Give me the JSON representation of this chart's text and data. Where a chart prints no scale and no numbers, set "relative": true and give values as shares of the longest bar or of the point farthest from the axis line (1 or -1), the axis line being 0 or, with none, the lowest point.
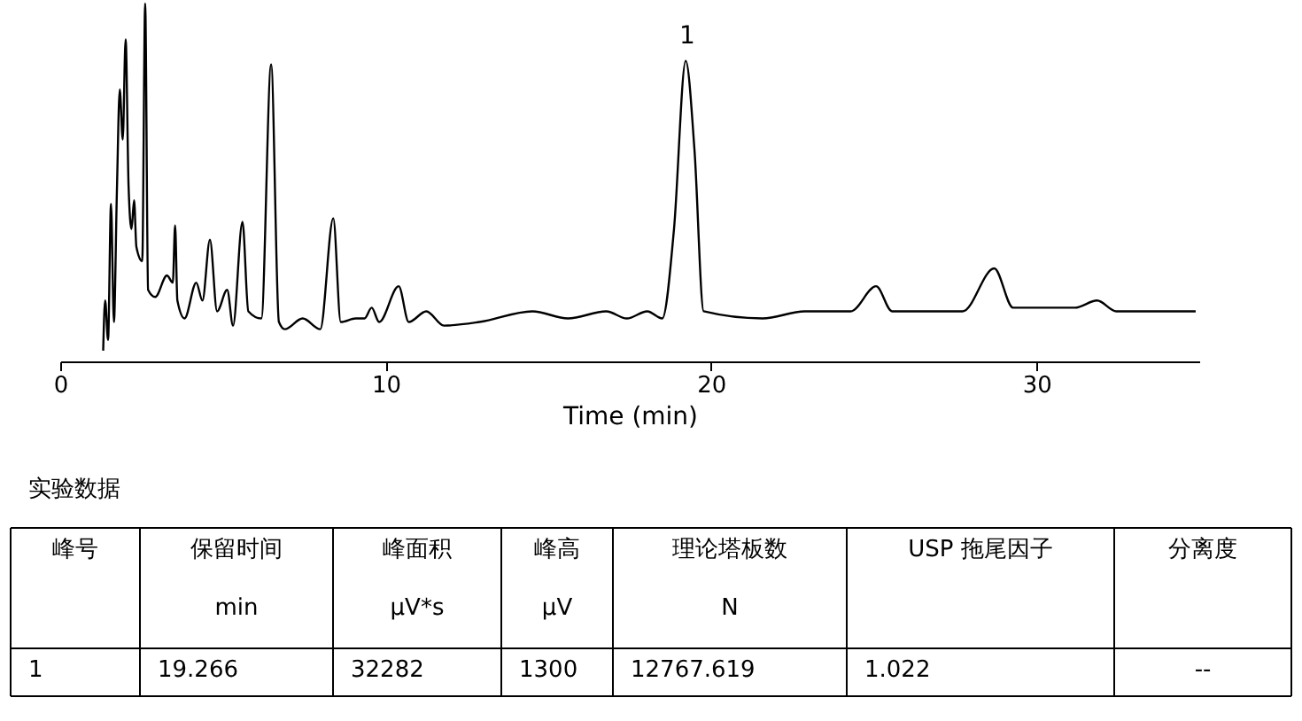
{
  "chart_data": {
    "type": "line",
    "xlabel": "Time (min)",
    "relative": true,
    "xlim": [
      0,
      35
    ],
    "xticks": [
      0,
      10,
      20,
      30
    ],
    "grid": false,
    "marker": "none",
    "line_style": "solid",
    "series": [
      {
        "color": "#000000",
        "x": [
          1.32,
          1.38,
          1.47,
          1.56,
          1.65,
          1.74,
          1.83,
          1.92,
          2.01,
          2.1,
          2.19,
          2.27,
          2.34,
          2.52,
          2.61,
          2.7,
          2.92,
          3.28,
          3.46,
          3.53,
          3.6,
          3.82,
          4.18,
          4.37,
          4.6,
          4.82,
          5.13,
          5.31,
          5.6,
          5.78,
          6.18,
          6.48,
          6.72,
          6.9,
          7.45,
          7.99,
          8.39,
          8.62,
          9.08,
          9.35,
          9.57,
          9.8,
          10.4,
          10.71,
          11.25,
          11.79,
          12.88,
          14.51,
          15.6,
          16.78,
          17.41,
          18.04,
          18.5,
          18.86,
          19.22,
          19.49,
          19.77,
          21.58,
          22.88,
          24.29,
          25.07,
          25.56,
          27.73,
          28.7,
          29.28,
          31.18,
          31.86,
          32.45,
          34.89
        ],
        "values": [
          0.03,
          0.17,
          0.06,
          0.44,
          0.11,
          0.47,
          0.76,
          0.62,
          0.9,
          0.49,
          0.37,
          0.45,
          0.32,
          0.28,
          1,
          0.2,
          0.18,
          0.24,
          0.22,
          0.38,
          0.17,
          0.12,
          0.22,
          0.17,
          0.34,
          0.14,
          0.2,
          0.1,
          0.39,
          0.14,
          0.12,
          0.83,
          0.11,
          0.09,
          0.12,
          0.09,
          0.4,
          0.11,
          0.12,
          0.12,
          0.15,
          0.11,
          0.21,
          0.11,
          0.14,
          0.1,
          0.11,
          0.14,
          0.12,
          0.14,
          0.12,
          0.14,
          0.12,
          0.37,
          0.84,
          0.59,
          0.14,
          0.12,
          0.14,
          0.14,
          0.21,
          0.14,
          0.14,
          0.26,
          0.15,
          0.15,
          0.17,
          0.14,
          0.14
        ]
      }
    ],
    "annotations": [
      {
        "text": "1",
        "x": 19.266,
        "y": 0.84
      },
      "实验数据",
      "峰号",
      "保留时间\nmin",
      "峰面积\nμV*s",
      "峰高\nμV",
      "理论塔板数\nN",
      "USP 拖尾因子",
      "分离度",
      "1",
      "19.266",
      "32282",
      "1300",
      "12767.619",
      "1.022",
      "--"
    ]
  }
}
